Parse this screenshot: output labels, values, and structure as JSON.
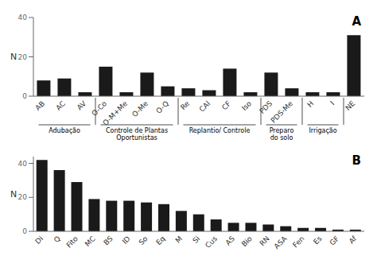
{
  "chart_data": [
    {
      "type": "bar",
      "title": "A",
      "categories": [
        "AB",
        "AC",
        "AV",
        "O-Co",
        "O-M+Me",
        "O-Me",
        "O-Q",
        "Re",
        "CAl",
        "CF",
        "Iso",
        "PDS",
        "PDS-Me",
        "H",
        "I",
        "NE"
      ],
      "values": [
        8,
        9,
        2,
        15,
        2,
        12,
        5,
        4,
        3,
        14,
        2,
        12,
        4,
        2,
        2,
        31
      ],
      "color": "#1a1a1a",
      "ylabel": "N",
      "ylim": [
        0,
        40
      ],
      "yticks": [
        0,
        20,
        40
      ],
      "grid": false,
      "annotations": [
        {
          "text": "Adubação",
          "from": "AB",
          "to": "AV"
        },
        {
          "text": "Controle de Plantas\nOportunistas",
          "from": "O-Co",
          "to": "O-Q"
        },
        {
          "text": "Replantio/ Controle",
          "from": "Re",
          "to": "Iso"
        },
        {
          "text": "Preparo\ndo solo",
          "from": "PDS",
          "to": "PDS-Me"
        },
        {
          "text": "Irrigação",
          "from": "H",
          "to": "I"
        }
      ]
    },
    {
      "type": "bar",
      "title": "B",
      "categories": [
        "Di",
        "Q",
        "Fito",
        "MC",
        "BS",
        "ID",
        "So",
        "Eq",
        "M",
        "Si",
        "Cus",
        "AS",
        "Bio",
        "RN",
        "ASA",
        "Fen",
        "Es",
        "GF",
        "Af"
      ],
      "values": [
        42,
        36,
        29,
        19,
        18,
        18,
        17,
        16,
        12,
        10,
        7,
        5,
        5,
        4,
        3,
        2,
        2,
        1,
        1
      ],
      "color": "#1a1a1a",
      "ylabel": "N",
      "ylim": [
        0,
        44
      ],
      "yticks": [
        0,
        20,
        40
      ],
      "grid": false
    }
  ]
}
